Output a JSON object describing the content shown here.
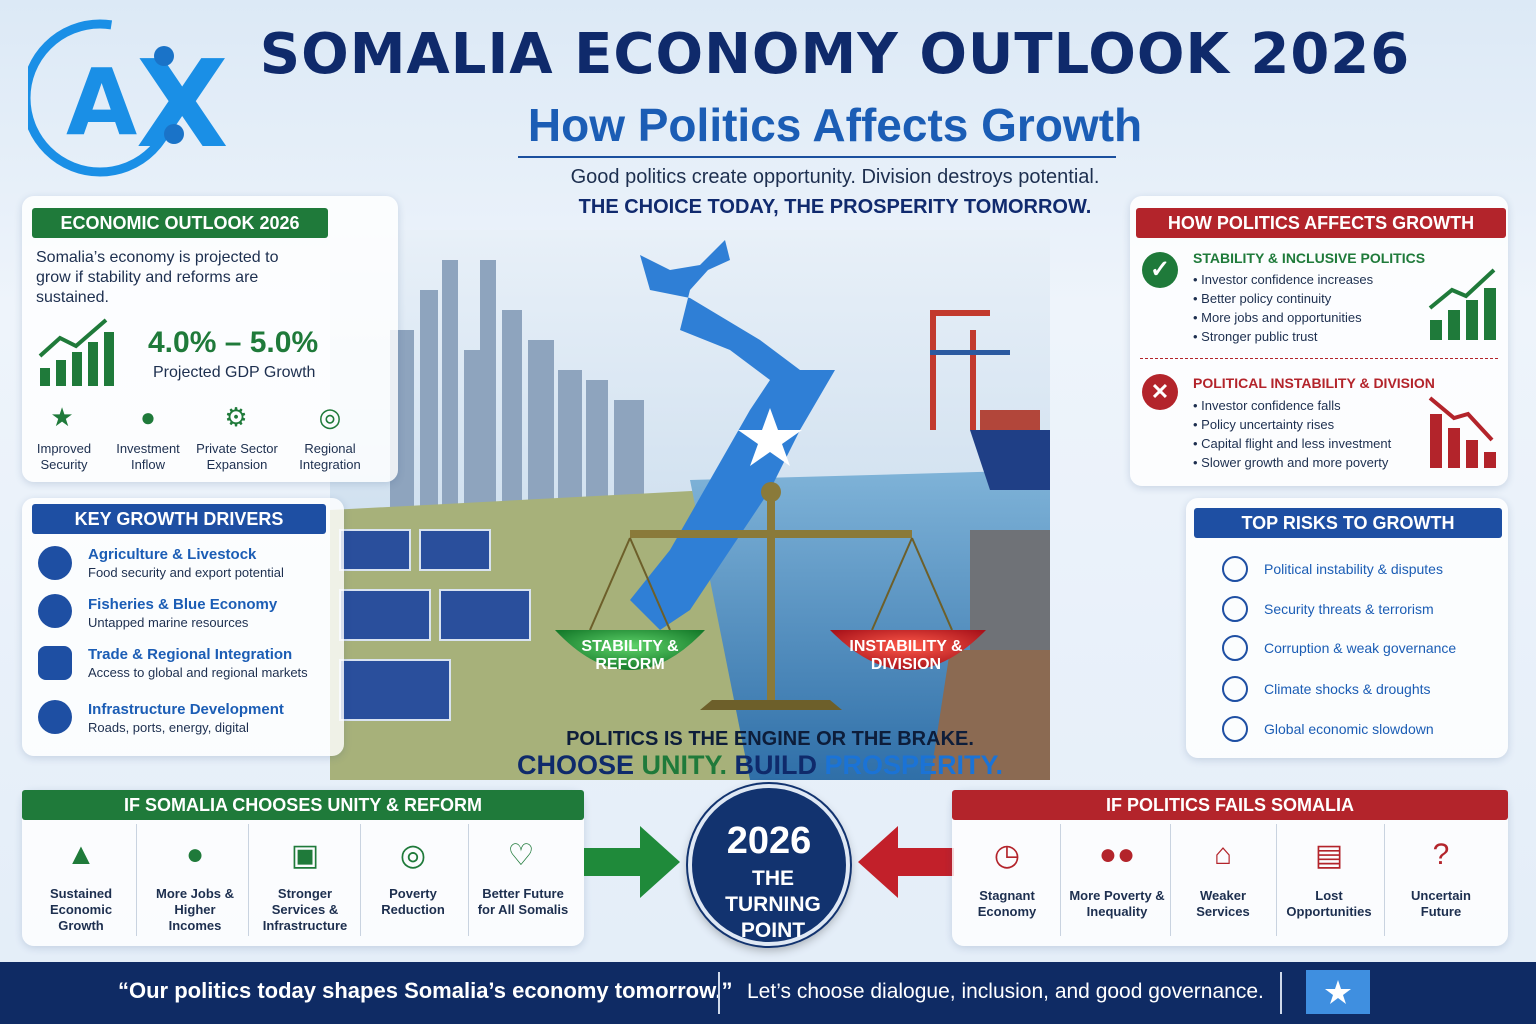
{
  "header": {
    "title": "SOMALIA ECONOMY OUTLOOK 2026",
    "subtitle": "How Politics Affects Growth",
    "tagline": "Good politics create opportunity. Division destroys potential.",
    "tagline2": "THE CHOICE TODAY, THE PROSPERITY TOMORROW."
  },
  "economic_outlook": {
    "title": "ECONOMIC OUTLOOK 2026",
    "description": "Somalia’s economy is projected to grow if stability and reforms are sustained.",
    "range": "4.0% – 5.0%",
    "range_label": "Projected GDP Growth",
    "items": [
      {
        "label": "Improved Security",
        "icon": "shield-check-icon"
      },
      {
        "label": "Investment Inflow",
        "icon": "investor-icon"
      },
      {
        "label": "Private Sector Expansion",
        "icon": "growth-gears-icon"
      },
      {
        "label": "Regional Integration",
        "icon": "globe-icon"
      }
    ]
  },
  "drivers": {
    "title": "KEY GROWTH DRIVERS",
    "items": [
      {
        "title": "Agriculture & Livestock",
        "desc": "Food security and export potential",
        "icon": "wheat-icon"
      },
      {
        "title": "Fisheries & Blue Economy",
        "desc": "Untapped marine resources",
        "icon": "fish-icon"
      },
      {
        "title": "Trade & Regional Integration",
        "desc": "Access to global and regional markets",
        "icon": "trade-icon"
      },
      {
        "title": "Infrastructure Development",
        "desc": "Roads, ports, energy, digital",
        "icon": "tools-icon"
      }
    ]
  },
  "politics": {
    "title": "HOW POLITICS AFFECTS GROWTH",
    "positive": {
      "heading": "STABILITY & INCLUSIVE POLITICS",
      "items": [
        "Investor confidence increases",
        "Better policy continuity",
        "More jobs and opportunities",
        "Stronger public trust"
      ]
    },
    "negative": {
      "heading": "POLITICAL INSTABILITY & DIVISION",
      "items": [
        "Investor confidence falls",
        "Policy uncertainty rises",
        "Capital flight and less investment",
        "Slower growth and more poverty"
      ]
    }
  },
  "risks": {
    "title": "TOP RISKS TO GROWTH",
    "items": [
      {
        "label": "Political instability & disputes",
        "icon": "conflict-icon"
      },
      {
        "label": "Security threats & terrorism",
        "icon": "security-icon"
      },
      {
        "label": "Corruption & weak governance",
        "icon": "official-icon"
      },
      {
        "label": "Climate shocks & droughts",
        "icon": "cloud-icon"
      },
      {
        "label": "Global economic slowdown",
        "icon": "globe-icon"
      }
    ]
  },
  "scale": {
    "left": "STABILITY & REFORM",
    "right": "INSTABILITY & DIVISION"
  },
  "slogan": {
    "line1": "POLITICS IS THE ENGINE OR THE BRAKE.",
    "choose": "CHOOSE ",
    "unity": "UNITY.",
    "build": " BUILD ",
    "prosperity": "PROSPERITY."
  },
  "unity_box": {
    "title": "IF SOMALIA CHOOSES UNITY & REFORM",
    "items": [
      {
        "label": "Sustained Economic Growth",
        "icon": "bar-growth-icon"
      },
      {
        "label": "More Jobs & Higher Incomes",
        "icon": "jobs-icon"
      },
      {
        "label": "Stronger Services & Infrastructure",
        "icon": "infrastructure-icon"
      },
      {
        "label": "Poverty Reduction",
        "icon": "target-icon"
      },
      {
        "label": "Better Future for All Somalis",
        "icon": "heart-icon"
      }
    ]
  },
  "turning_point": {
    "year": "2026",
    "text": "THE TURNING POINT"
  },
  "fails_box": {
    "title": "IF POLITICS FAILS SOMALIA",
    "items": [
      {
        "label": "Stagnant Economy",
        "icon": "clock-icon"
      },
      {
        "label": "More Poverty & Inequality",
        "icon": "people-icon"
      },
      {
        "label": "Weaker Services",
        "icon": "house-search-icon"
      },
      {
        "label": "Lost Opportunities",
        "icon": "briefcase-icon"
      },
      {
        "label": "Uncertain Future",
        "icon": "question-icon"
      }
    ]
  },
  "footer": {
    "quote": "“Our politics today shapes Somalia’s economy tomorrow.”",
    "cta": "Let’s choose dialogue, inclusion, and good governance."
  },
  "colors": {
    "navy": "#0f2a6b",
    "green": "#1f7a3a",
    "red": "#b3242b",
    "blue": "#1e4fa3"
  }
}
